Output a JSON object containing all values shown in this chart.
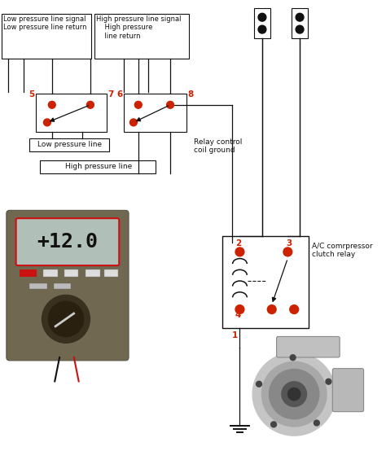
{
  "bg_color": "#ffffff",
  "red": "#cc2200",
  "dark": "#111111",
  "label_lp_signal": "Low pressure line signal\nLow pressure line return",
  "label_hp_signal": "High pressure line signal\n    High pressure\n    line return",
  "label_relay_ctrl": "Relay control\ncoil ground",
  "label_lp_line": "Low pressure line",
  "label_hp_line": "High pressure line",
  "label_ac": "A/C comrpressor\nclutch relay",
  "meter_text": "+12.0",
  "meter_body_color": "#7a7060",
  "meter_screen_color": "#a8b8b0",
  "meter_screen_border": "#cc1111",
  "meter_btn_color1": "#cc1111",
  "meter_btn_color2": "#cccccc",
  "dial_color": "#3a3020",
  "comp_body1": "#c8c8c8",
  "comp_body2": "#a0a0a0",
  "comp_body3": "#787878",
  "comp_dark": "#444444"
}
